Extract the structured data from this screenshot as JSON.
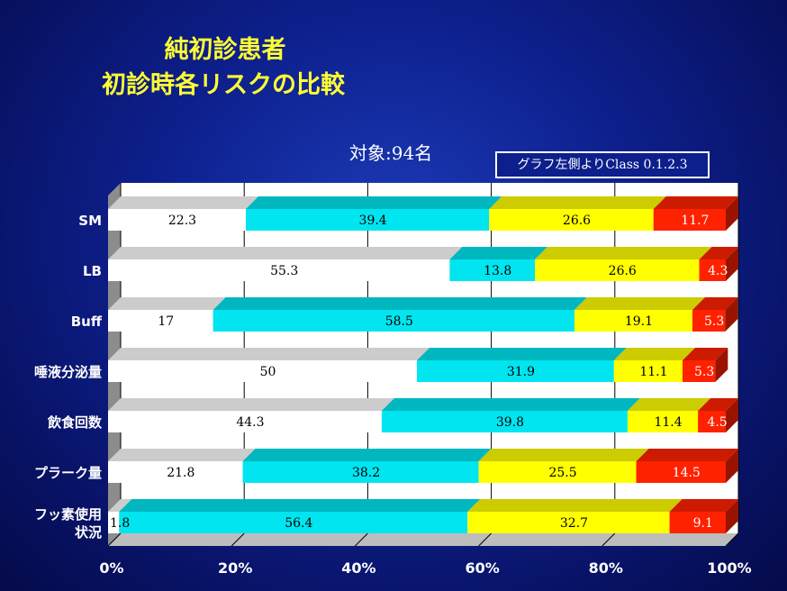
{
  "title": {
    "line1": "純初診患者",
    "line2": "初診時各リスクの比較"
  },
  "subject_label": "対象:94名",
  "class_note": "グラフ左側よりClass 0.1.2.3",
  "colors": {
    "class0": "#ffffff",
    "class1": "#00e5f0",
    "class2": "#ffff00",
    "class3": "#ff2200"
  },
  "chart_data": {
    "type": "bar",
    "orientation": "horizontal",
    "stacked": "percent",
    "categories": [
      [
        "SM"
      ],
      [
        "LB"
      ],
      [
        "Buff"
      ],
      [
        "唾液分泌量"
      ],
      [
        "飲食回数"
      ],
      [
        "プラーク量"
      ],
      [
        "フッ素使用",
        "状況"
      ]
    ],
    "series": [
      {
        "values": [
          22.3,
          55.3,
          17,
          50,
          44.3,
          21.8,
          1.8
        ]
      },
      {
        "values": [
          39.4,
          13.8,
          58.5,
          31.9,
          39.8,
          38.2,
          56.4
        ]
      },
      {
        "values": [
          26.6,
          26.6,
          19.1,
          11.1,
          11.4,
          25.5,
          32.7
        ]
      },
      {
        "values": [
          11.7,
          4.3,
          5.3,
          5.3,
          4.5,
          14.5,
          9.1
        ]
      }
    ],
    "value_labels": [
      [
        "22.3",
        "39.4",
        "26.6",
        "11.7"
      ],
      [
        "55.3",
        "13.8",
        "26.6",
        "4.3"
      ],
      [
        "17",
        "58.5",
        "19.1",
        "5.3"
      ],
      [
        "50",
        "31.9",
        "11.1",
        "5.3"
      ],
      [
        "44.3",
        "39.8",
        "11.4",
        "4.5"
      ],
      [
        "21.8",
        "38.2",
        "25.5",
        "14.5"
      ],
      [
        "1.8",
        "56.4",
        "32.7",
        "9.1"
      ]
    ],
    "x_ticks": [
      "0%",
      "20%",
      "40%",
      "60%",
      "80%",
      "100%"
    ],
    "xlim": [
      0,
      100
    ],
    "grid": true
  }
}
